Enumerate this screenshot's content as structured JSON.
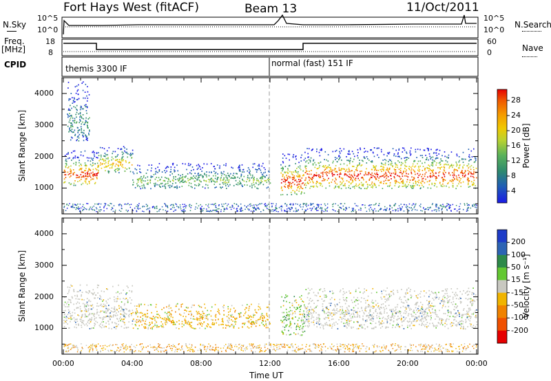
{
  "header": {
    "station": "Fort Hays West (fitACF)",
    "beam": "Beam 13",
    "date": "11/Oct/2011"
  },
  "noise_panel": {
    "left_label": "N.Sky",
    "right_label": "N.Search",
    "left_ticks": [
      "10^5",
      "10^0"
    ],
    "right_ticks": [
      "10^5",
      "10^0"
    ]
  },
  "freq_panel": {
    "left_label_line1": "Freq.",
    "left_label_line2": "[MHz]",
    "left_ticks": [
      "18",
      "8"
    ],
    "right_label": "Nave",
    "right_ticks": [
      "60",
      "0"
    ]
  },
  "cpid_panel": {
    "label": "CPID",
    "segments": [
      {
        "name": "themis 3300 IF",
        "start_hour": 0
      },
      {
        "name": "normal (fast) 151 IF",
        "start_hour": 12
      }
    ]
  },
  "power_panel": {
    "ylabel": "Slant Range [km]",
    "yticks": [
      "1000",
      "2000",
      "3000",
      "4000"
    ],
    "colorbar_label": "Power [dB]",
    "colorbar_ticks": [
      "4",
      "8",
      "12",
      "16",
      "20",
      "24",
      "28"
    ],
    "colors": [
      "#1a1ae6",
      "#1f5fb4",
      "#2e8a6e",
      "#5ab25a",
      "#b8d232",
      "#f0c800",
      "#f59a00",
      "#f05a00",
      "#e60000"
    ]
  },
  "velocity_panel": {
    "ylabel": "Slant Range [km]",
    "yticks": [
      "1000",
      "2000",
      "3000",
      "4000"
    ],
    "colorbar_label": "Velocity [m s⁻¹]",
    "colorbar_ticks": [
      "200",
      "100",
      "50",
      "15",
      "-15",
      "-50",
      "-100",
      "-200"
    ],
    "colors": [
      "#1e3cc8",
      "#2d64b4",
      "#2e8a4a",
      "#64c832",
      "#c8c8c0",
      "#f0b400",
      "#f08200",
      "#f05000",
      "#e60000"
    ]
  },
  "x_axis": {
    "label": "Time UT",
    "ticks": [
      "00:00",
      "04:00",
      "08:00",
      "12:00",
      "16:00",
      "20:00",
      "00:00"
    ]
  },
  "chart_data": {
    "type": "heatmap",
    "title": "Fort Hays West (fitACF)",
    "xlabel": "Time UT",
    "ylabel": "Slant Range [km]",
    "xlim": [
      0,
      24
    ],
    "ylim": [
      180,
      4500
    ],
    "frequency_segments": [
      {
        "start_hour": 0,
        "end_hour": 2.0,
        "freq_mhz": 15
      },
      {
        "start_hour": 2.0,
        "end_hour": 14.0,
        "freq_mhz": 10
      },
      {
        "start_hour": 14.0,
        "end_hour": 24,
        "freq_mhz": 15
      }
    ],
    "power_echo_bands": [
      {
        "start_hour": 0.0,
        "end_hour": 2.0,
        "range_start_km": 1100,
        "range_end_km": 2200,
        "peak_power_db": 28
      },
      {
        "start_hour": 0.2,
        "end_hour": 1.5,
        "range_start_km": 2500,
        "range_end_km": 4400,
        "peak_power_db": 8
      },
      {
        "start_hour": 2.0,
        "end_hour": 4.0,
        "range_start_km": 1500,
        "range_end_km": 2400,
        "peak_power_db": 20
      },
      {
        "start_hour": 4.0,
        "end_hour": 12.0,
        "range_start_km": 1000,
        "range_end_km": 1800,
        "peak_power_db": 12
      },
      {
        "start_hour": 12.6,
        "end_hour": 14.0,
        "range_start_km": 800,
        "range_end_km": 2100,
        "peak_power_db": 28
      },
      {
        "start_hour": 14.0,
        "end_hour": 24.0,
        "range_start_km": 1000,
        "range_end_km": 2300,
        "peak_power_db": 28
      }
    ],
    "velocity_echo_bands": [
      {
        "start_hour": 0.0,
        "end_hour": 4.0,
        "range_start_km": 1000,
        "range_end_km": 2400,
        "typical_velocity_ms": 0
      },
      {
        "start_hour": 4.0,
        "end_hour": 12.0,
        "range_start_km": 1000,
        "range_end_km": 1800,
        "typical_velocity_ms": -50
      },
      {
        "start_hour": 12.6,
        "end_hour": 14.0,
        "range_start_km": 800,
        "range_end_km": 2100,
        "typical_velocity_ms": 50
      },
      {
        "start_hour": 14.0,
        "end_hour": 24.0,
        "range_start_km": 1000,
        "range_end_km": 2300,
        "typical_velocity_ms": 0
      }
    ]
  }
}
